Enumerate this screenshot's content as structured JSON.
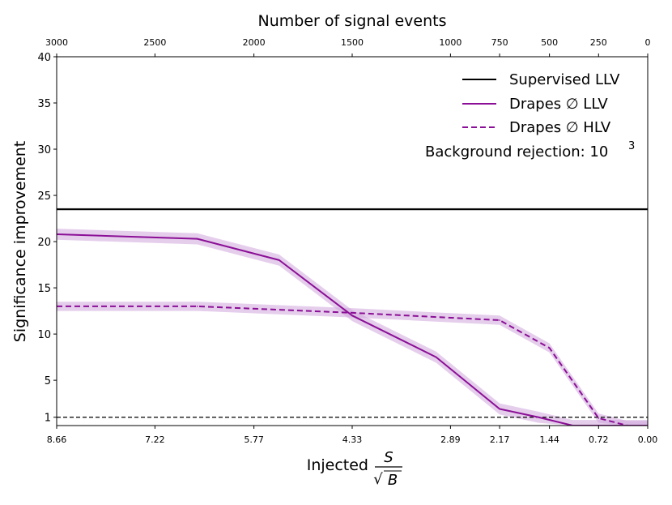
{
  "chart_data": {
    "type": "line",
    "title": "",
    "top_xlabel": "Number of signal events",
    "top_ticks": [
      "3000",
      "2500",
      "2000",
      "1500",
      "1000",
      "750",
      "500",
      "250",
      "0"
    ],
    "top_tick_positions": [
      8.66,
      7.22,
      5.77,
      4.33,
      2.89,
      2.17,
      1.44,
      0.72,
      0.0
    ],
    "xlabel_prefix": "Injected",
    "xlabel_frac_num": "S",
    "xlabel_frac_den": "B",
    "xlabel_sqrt": "√",
    "xticks": [
      8.66,
      7.22,
      5.77,
      4.33,
      2.89,
      2.17,
      1.44,
      0.72,
      0.0
    ],
    "xtick_labels": [
      "8.66",
      "7.22",
      "5.77",
      "4.33",
      "2.89",
      "2.17",
      "1.44",
      "0.72",
      "0.00"
    ],
    "xlim": [
      8.66,
      0.0
    ],
    "ylabel": "Significance improvement",
    "yticks": [
      1,
      5,
      10,
      15,
      20,
      25,
      30,
      35,
      40
    ],
    "ylim": [
      0.1,
      40
    ],
    "reference_line": 1,
    "series": [
      {
        "name": "Supervised LLV",
        "style": "solid",
        "color": "#000000",
        "x": [
          8.66,
          0.0
        ],
        "y": [
          23.5,
          23.5
        ],
        "band": 0.15
      },
      {
        "name": "Drapes ∅ LLV",
        "style": "solid",
        "color": "#8b0f96",
        "x": [
          8.66,
          6.6,
          5.4,
          4.33,
          3.1,
          2.17,
          1.6,
          1.1,
          0.72,
          0.3,
          0.0
        ],
        "y": [
          20.8,
          20.3,
          18.0,
          12.0,
          7.5,
          1.9,
          1.0,
          0.1,
          0.1,
          0.1,
          0.1
        ],
        "band": 0.6
      },
      {
        "name": "Drapes ∅ HLV",
        "style": "dashed",
        "color": "#8b0f96",
        "x": [
          8.66,
          6.6,
          4.33,
          2.17,
          1.44,
          0.72,
          0.3,
          0.0
        ],
        "y": [
          13.0,
          13.0,
          12.3,
          11.5,
          8.5,
          0.9,
          0.1,
          0.1
        ],
        "band": 0.5
      }
    ],
    "legend_location": "top-right",
    "annotation_base": "Background rejection: 10",
    "annotation_exp": "3",
    "colors": {
      "purple": "#8b0f96",
      "band": "#cfa6dd",
      "axis": "#000000"
    }
  }
}
